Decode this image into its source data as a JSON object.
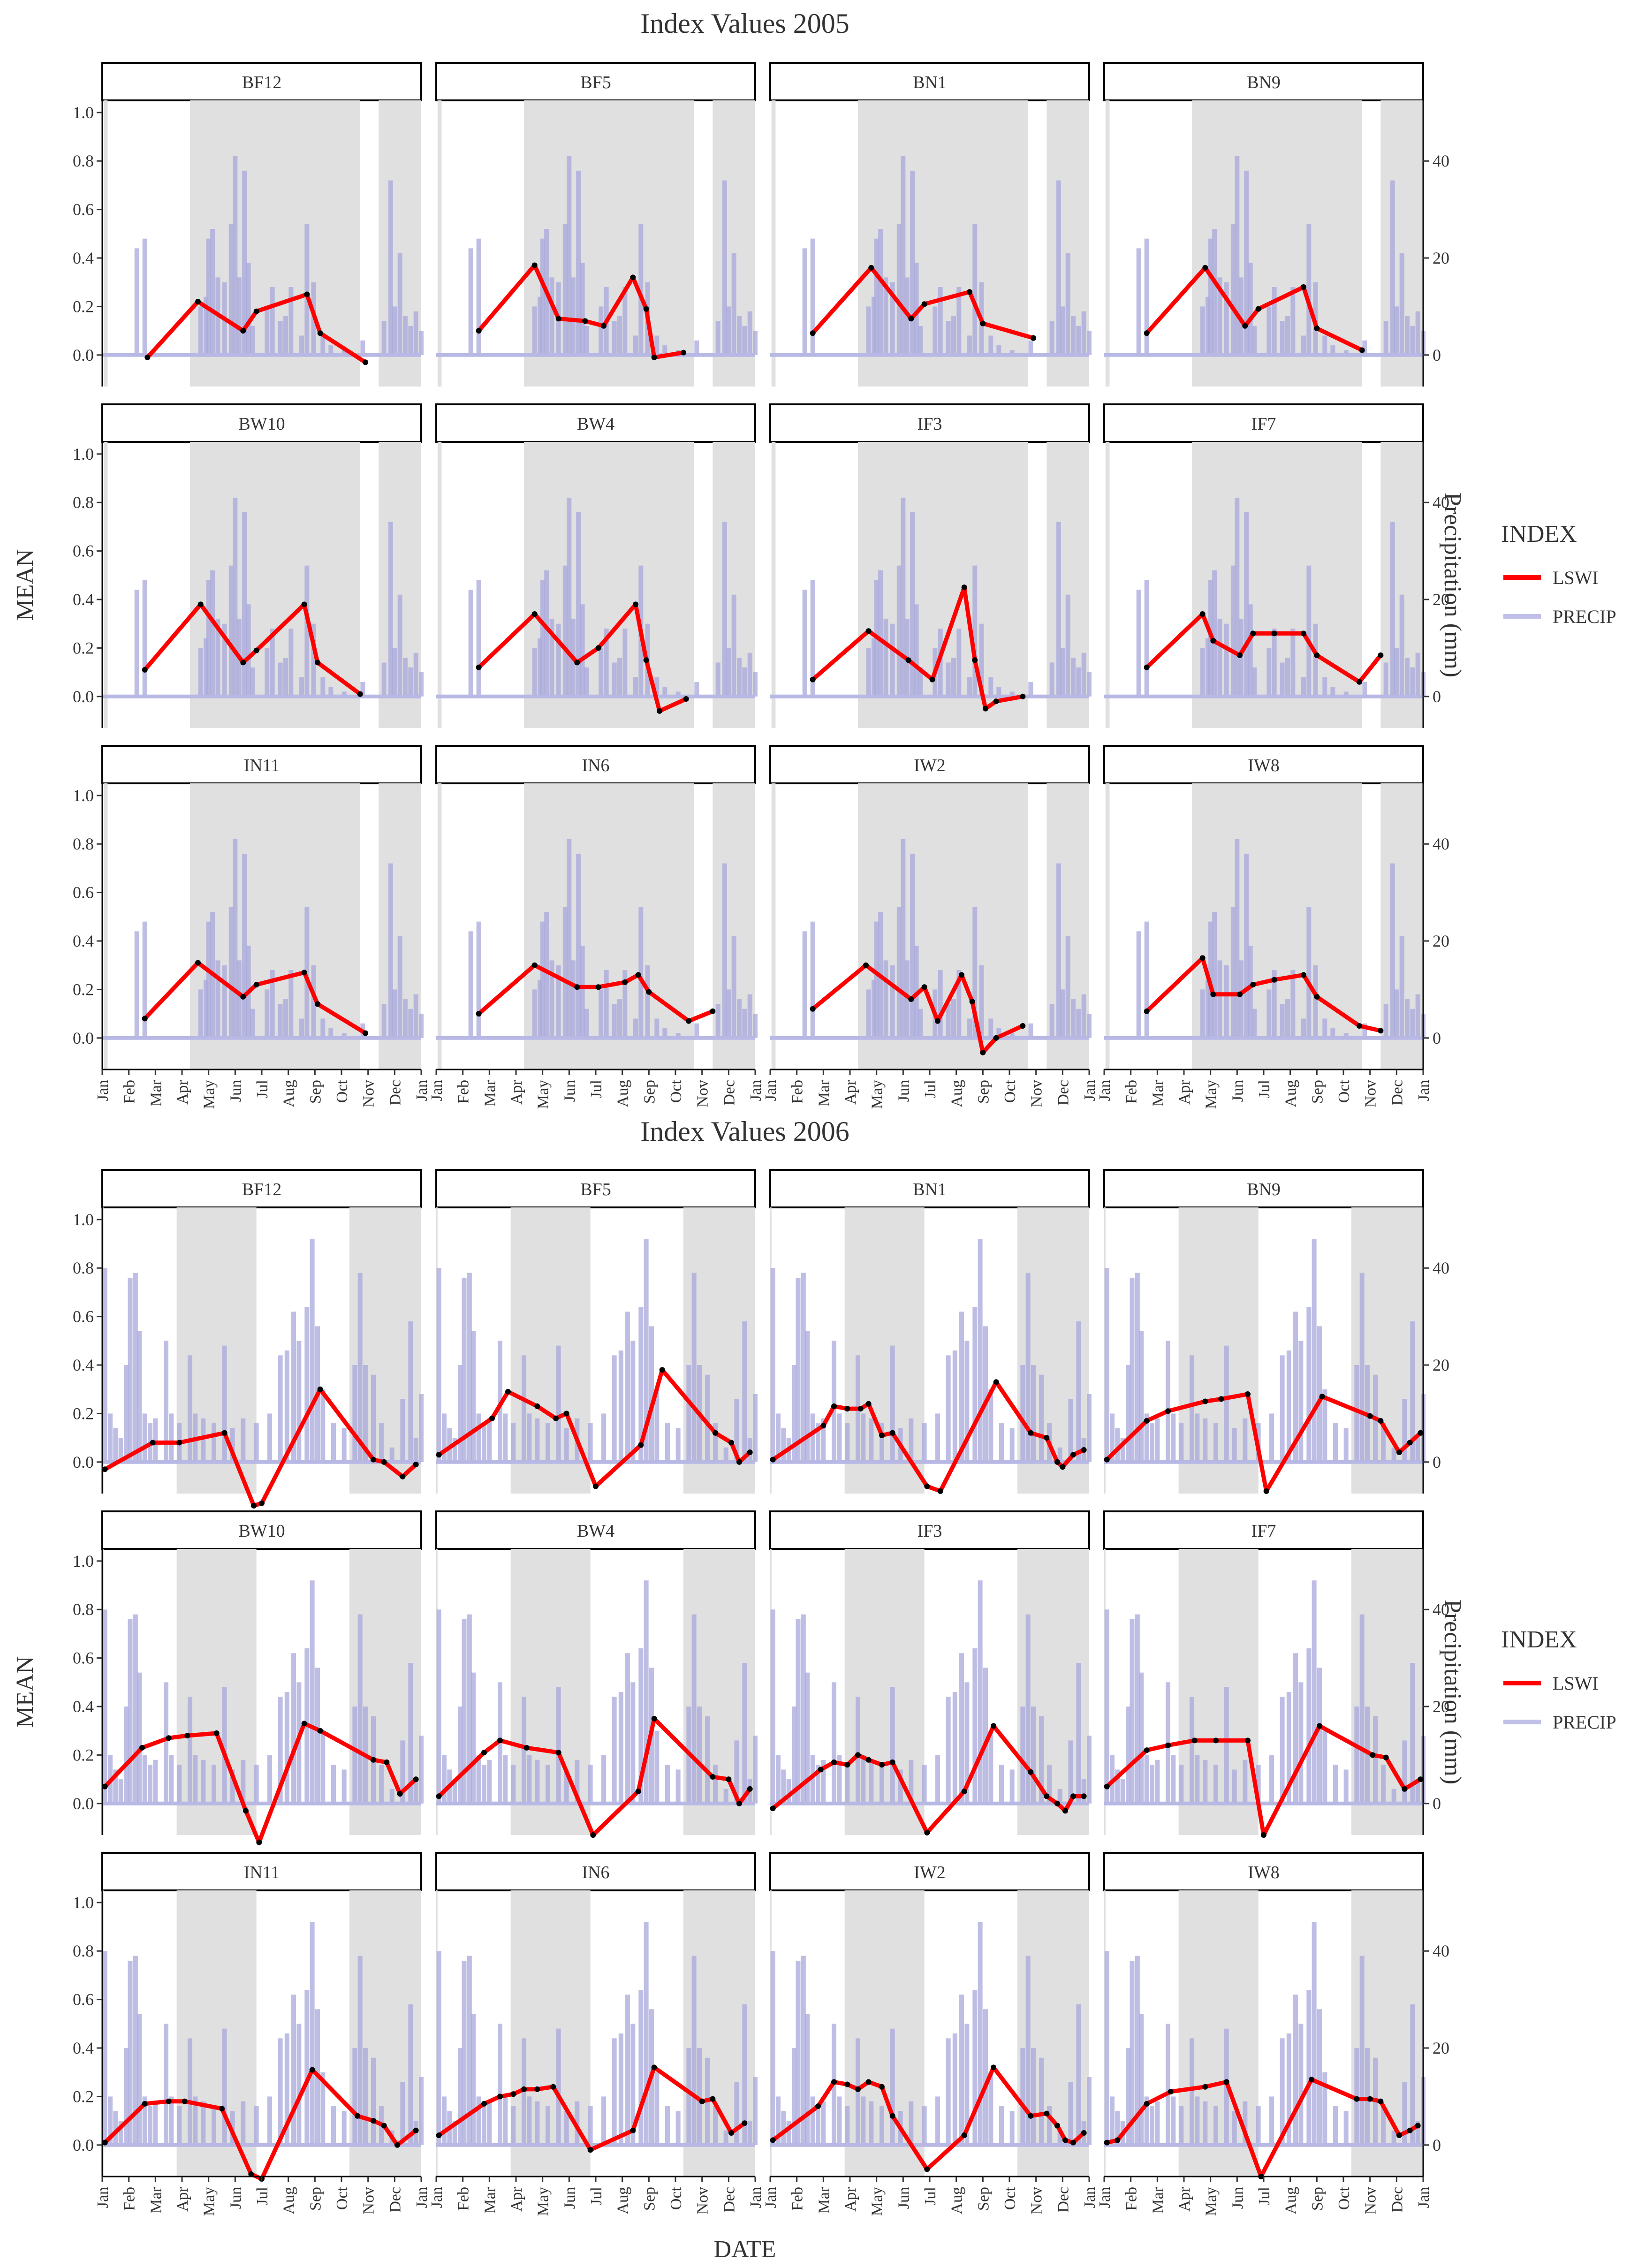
{
  "chart_data": [
    {
      "type": "line",
      "title": "Index Values 2005",
      "ylabel": "MEAN",
      "y2label": "Precipitation (mm)",
      "ylim": [
        -0.13,
        1.05
      ],
      "y_ticks": [
        0.0,
        0.2,
        0.4,
        0.6,
        0.8,
        1.0
      ],
      "y_tick_labels": [
        "0.0",
        "0.2",
        "0.4",
        "0.6",
        "0.8",
        "1.0"
      ],
      "y2_ticks": [
        0,
        20,
        40
      ],
      "y2_tick_labels": [
        "0",
        "20",
        "40"
      ],
      "y2_max_for_unit_scale": 50,
      "x_tick_labels": [
        "Jan",
        "Feb",
        "Mar",
        "Apr",
        "May",
        "Jun",
        "Jul",
        "Aug",
        "Sep",
        "Oct",
        "Nov",
        "Dec",
        "Jan"
      ],
      "shaded_periods_month": [
        [
          0.05,
          0.2
        ],
        [
          3.3,
          9.7
        ],
        [
          10.4,
          12.0
        ]
      ],
      "precip_events": [
        [
          1.3,
          22
        ],
        [
          1.6,
          24
        ],
        [
          3.7,
          10
        ],
        [
          3.9,
          12
        ],
        [
          4.0,
          24
        ],
        [
          4.15,
          26
        ],
        [
          4.35,
          16
        ],
        [
          4.6,
          15
        ],
        [
          4.85,
          27
        ],
        [
          5.0,
          41
        ],
        [
          5.15,
          16
        ],
        [
          5.35,
          38
        ],
        [
          5.5,
          19
        ],
        [
          5.65,
          6
        ],
        [
          6.2,
          10
        ],
        [
          6.4,
          14
        ],
        [
          6.7,
          7
        ],
        [
          6.9,
          8
        ],
        [
          7.1,
          14
        ],
        [
          7.5,
          4
        ],
        [
          7.7,
          27
        ],
        [
          7.95,
          15
        ],
        [
          8.3,
          4
        ],
        [
          8.6,
          2
        ],
        [
          9.1,
          1
        ],
        [
          9.8,
          3
        ],
        [
          10.6,
          7
        ],
        [
          10.85,
          36
        ],
        [
          11.0,
          10
        ],
        [
          11.2,
          21
        ],
        [
          11.4,
          8
        ],
        [
          11.6,
          6
        ],
        [
          11.8,
          9
        ],
        [
          12.0,
          5
        ]
      ],
      "legend_title": "INDEX",
      "legend": [
        "LSWI",
        "PRECIP"
      ],
      "series_colors": {
        "LSWI": "#ff0000",
        "PRECIP": "#c0c0e8"
      },
      "panels": [
        {
          "name": "BF12",
          "x": [
            1.7,
            3.6,
            5.3,
            5.8,
            7.7,
            8.2,
            9.9
          ],
          "y": [
            -0.01,
            0.22,
            0.1,
            0.18,
            0.25,
            0.09,
            -0.03
          ]
        },
        {
          "name": "BF5",
          "x": [
            1.6,
            3.7,
            4.6,
            5.6,
            6.3,
            7.4,
            7.9,
            8.2,
            9.3
          ],
          "y": [
            0.1,
            0.37,
            0.15,
            0.14,
            0.12,
            0.32,
            0.19,
            -0.01,
            0.01
          ]
        },
        {
          "name": "BN1",
          "x": [
            1.6,
            3.8,
            5.3,
            5.8,
            7.5,
            8.0,
            9.9
          ],
          "y": [
            0.09,
            0.36,
            0.15,
            0.21,
            0.26,
            0.13,
            0.07
          ]
        },
        {
          "name": "BN9",
          "x": [
            1.6,
            3.8,
            5.3,
            5.8,
            7.5,
            8.0,
            9.7
          ],
          "y": [
            0.09,
            0.36,
            0.12,
            0.19,
            0.28,
            0.11,
            0.02
          ]
        },
        {
          "name": "BW10",
          "x": [
            1.6,
            3.7,
            5.3,
            5.8,
            7.6,
            8.1,
            9.7
          ],
          "y": [
            0.11,
            0.38,
            0.14,
            0.19,
            0.38,
            0.14,
            0.01
          ]
        },
        {
          "name": "BW4",
          "x": [
            1.6,
            3.7,
            5.3,
            6.1,
            7.5,
            7.9,
            8.4,
            9.4
          ],
          "y": [
            0.12,
            0.34,
            0.14,
            0.2,
            0.38,
            0.15,
            -0.06,
            -0.01
          ]
        },
        {
          "name": "IF3",
          "x": [
            1.6,
            3.7,
            5.2,
            6.1,
            7.3,
            7.7,
            8.1,
            8.5,
            9.5
          ],
          "y": [
            0.07,
            0.27,
            0.15,
            0.07,
            0.45,
            0.15,
            -0.05,
            -0.02,
            0.0
          ]
        },
        {
          "name": "IF7",
          "x": [
            1.6,
            3.7,
            4.1,
            5.1,
            5.6,
            6.4,
            7.5,
            8.0,
            9.6,
            10.4
          ],
          "y": [
            0.12,
            0.34,
            0.23,
            0.17,
            0.26,
            0.26,
            0.26,
            0.17,
            0.06,
            0.17
          ]
        },
        {
          "name": "IN11",
          "x": [
            1.6,
            3.6,
            5.3,
            5.8,
            7.6,
            8.1,
            9.9
          ],
          "y": [
            0.08,
            0.31,
            0.17,
            0.22,
            0.27,
            0.14,
            0.02
          ]
        },
        {
          "name": "IN6",
          "x": [
            1.6,
            3.7,
            5.3,
            6.1,
            7.1,
            7.6,
            8.0,
            9.5,
            10.4
          ],
          "y": [
            0.1,
            0.3,
            0.21,
            0.21,
            0.23,
            0.26,
            0.19,
            0.07,
            0.11
          ]
        },
        {
          "name": "IW2",
          "x": [
            1.6,
            3.6,
            5.3,
            5.8,
            6.3,
            7.2,
            7.6,
            8.0,
            8.5,
            9.5
          ],
          "y": [
            0.12,
            0.3,
            0.16,
            0.21,
            0.07,
            0.26,
            0.15,
            -0.06,
            0.0,
            0.05
          ]
        },
        {
          "name": "IW8",
          "x": [
            1.6,
            3.7,
            4.1,
            5.1,
            5.6,
            6.4,
            7.5,
            8.0,
            9.6,
            10.4
          ],
          "y": [
            0.11,
            0.33,
            0.18,
            0.18,
            0.22,
            0.24,
            0.26,
            0.17,
            0.05,
            0.03
          ]
        }
      ]
    },
    {
      "type": "line",
      "title": "Index Values 2006",
      "ylabel": "MEAN",
      "y2label": "Precipitation (mm)",
      "xlabel": "DATE",
      "ylim": [
        -0.13,
        1.05
      ],
      "y_ticks": [
        0.0,
        0.2,
        0.4,
        0.6,
        0.8,
        1.0
      ],
      "y_tick_labels": [
        "0.0",
        "0.2",
        "0.4",
        "0.6",
        "0.8",
        "1.0"
      ],
      "y2_ticks": [
        0,
        20,
        40
      ],
      "y2_tick_labels": [
        "0",
        "20",
        "40"
      ],
      "y2_max_for_unit_scale": 50,
      "x_tick_labels": [
        "Jan",
        "Feb",
        "Mar",
        "Apr",
        "May",
        "Jun",
        "Jul",
        "Aug",
        "Sep",
        "Oct",
        "Nov",
        "Dec",
        "Jan"
      ],
      "shaded_periods_month": [
        [
          0.0,
          0.05
        ],
        [
          2.8,
          5.8
        ],
        [
          9.3,
          12.0
        ]
      ],
      "precip_events": [
        [
          0.1,
          40
        ],
        [
          0.3,
          10
        ],
        [
          0.5,
          7
        ],
        [
          0.7,
          5
        ],
        [
          0.9,
          20
        ],
        [
          1.05,
          38
        ],
        [
          1.25,
          39
        ],
        [
          1.4,
          27
        ],
        [
          1.6,
          10
        ],
        [
          1.8,
          8
        ],
        [
          2.0,
          9
        ],
        [
          2.4,
          25
        ],
        [
          2.6,
          10
        ],
        [
          2.9,
          8
        ],
        [
          3.3,
          22
        ],
        [
          3.5,
          10
        ],
        [
          3.8,
          9
        ],
        [
          4.2,
          8
        ],
        [
          4.6,
          24
        ],
        [
          4.9,
          7
        ],
        [
          5.3,
          9
        ],
        [
          5.8,
          8
        ],
        [
          6.3,
          10
        ],
        [
          6.7,
          22
        ],
        [
          6.95,
          23
        ],
        [
          7.2,
          31
        ],
        [
          7.4,
          25
        ],
        [
          7.7,
          32
        ],
        [
          7.9,
          46
        ],
        [
          8.1,
          28
        ],
        [
          8.3,
          15
        ],
        [
          8.7,
          8
        ],
        [
          9.1,
          7
        ],
        [
          9.5,
          20
        ],
        [
          9.7,
          39
        ],
        [
          9.9,
          20
        ],
        [
          10.2,
          18
        ],
        [
          10.5,
          8
        ],
        [
          10.9,
          3
        ],
        [
          11.3,
          13
        ],
        [
          11.6,
          29
        ],
        [
          11.8,
          5
        ],
        [
          12.0,
          14
        ]
      ],
      "legend_title": "INDEX",
      "legend": [
        "LSWI",
        "PRECIP"
      ],
      "series_colors": {
        "LSWI": "#ff0000",
        "PRECIP": "#c0c0e8"
      },
      "panels": [
        {
          "name": "BF12",
          "x": [
            0.1,
            1.9,
            2.9,
            4.6,
            5.7,
            6.0,
            8.2,
            10.2,
            10.6,
            11.3,
            11.8
          ],
          "y": [
            -0.03,
            0.08,
            0.08,
            0.12,
            -0.18,
            -0.17,
            0.3,
            0.01,
            0.0,
            -0.06,
            -0.01
          ]
        },
        {
          "name": "BF5",
          "x": [
            0.1,
            2.1,
            2.7,
            3.8,
            4.5,
            4.9,
            6.0,
            7.7,
            8.5,
            10.5,
            11.1,
            11.4,
            11.8
          ],
          "y": [
            0.03,
            0.18,
            0.29,
            0.23,
            0.18,
            0.2,
            -0.1,
            0.07,
            0.38,
            0.12,
            0.08,
            0.0,
            0.04
          ]
        },
        {
          "name": "BN1",
          "x": [
            0.1,
            2.0,
            2.4,
            2.9,
            3.4,
            3.7,
            4.2,
            4.6,
            5.9,
            6.4,
            8.5,
            9.8,
            10.4,
            10.8,
            11.0,
            11.4,
            11.8
          ],
          "y": [
            0.01,
            0.15,
            0.23,
            0.22,
            0.22,
            0.24,
            0.11,
            0.12,
            -0.1,
            -0.12,
            0.33,
            0.12,
            0.1,
            0.0,
            -0.02,
            0.03,
            0.05
          ]
        },
        {
          "name": "BN9",
          "x": [
            0.1,
            1.6,
            2.4,
            3.8,
            4.4,
            5.4,
            6.1,
            8.2,
            10.0,
            10.4,
            11.1,
            11.5,
            11.9
          ],
          "y": [
            0.01,
            0.17,
            0.21,
            0.25,
            0.26,
            0.28,
            -0.12,
            0.27,
            0.19,
            0.17,
            0.04,
            0.08,
            0.12
          ]
        },
        {
          "name": "BW10",
          "x": [
            0.1,
            1.5,
            2.5,
            3.2,
            4.3,
            5.4,
            5.9,
            7.6,
            8.2,
            10.2,
            10.7,
            11.2,
            11.8
          ],
          "y": [
            0.07,
            0.23,
            0.27,
            0.28,
            0.29,
            -0.03,
            -0.16,
            0.33,
            0.3,
            0.18,
            0.17,
            0.04,
            0.1
          ]
        },
        {
          "name": "BW4",
          "x": [
            0.1,
            1.8,
            2.4,
            3.4,
            4.6,
            5.9,
            7.6,
            8.2,
            10.4,
            11.0,
            11.4,
            11.8
          ],
          "y": [
            0.03,
            0.21,
            0.26,
            0.23,
            0.21,
            -0.13,
            0.05,
            0.35,
            0.11,
            0.1,
            0.0,
            0.06
          ]
        },
        {
          "name": "IF3",
          "x": [
            0.1,
            1.9,
            2.4,
            2.9,
            3.3,
            3.7,
            4.2,
            4.6,
            5.9,
            7.3,
            8.4,
            9.8,
            10.4,
            10.8,
            11.1,
            11.4,
            11.8
          ],
          "y": [
            -0.02,
            0.14,
            0.17,
            0.16,
            0.2,
            0.18,
            0.16,
            0.17,
            -0.12,
            0.05,
            0.32,
            0.13,
            0.03,
            0.0,
            -0.03,
            0.03,
            0.03
          ]
        },
        {
          "name": "IF7",
          "x": [
            0.1,
            1.6,
            2.4,
            3.4,
            4.2,
            5.4,
            6.0,
            8.1,
            10.1,
            10.6,
            11.3,
            11.9
          ],
          "y": [
            0.07,
            0.22,
            0.24,
            0.26,
            0.26,
            0.26,
            -0.13,
            0.32,
            0.2,
            0.19,
            0.06,
            0.1
          ]
        },
        {
          "name": "IN11",
          "x": [
            0.1,
            1.6,
            2.5,
            3.1,
            4.5,
            5.6,
            6.0,
            7.9,
            9.6,
            10.2,
            10.6,
            11.1,
            11.8
          ],
          "y": [
            0.01,
            0.17,
            0.18,
            0.18,
            0.15,
            -0.12,
            -0.14,
            0.31,
            0.12,
            0.1,
            0.08,
            0.0,
            0.06
          ]
        },
        {
          "name": "IN6",
          "x": [
            0.1,
            1.8,
            2.4,
            2.9,
            3.3,
            3.8,
            4.4,
            5.8,
            7.4,
            8.2,
            10.0,
            10.4,
            11.1,
            11.6
          ],
          "y": [
            0.04,
            0.17,
            0.2,
            0.21,
            0.23,
            0.23,
            0.24,
            -0.02,
            0.06,
            0.32,
            0.18,
            0.19,
            0.05,
            0.09
          ]
        },
        {
          "name": "IW2",
          "x": [
            0.1,
            1.8,
            2.4,
            2.9,
            3.3,
            3.7,
            4.2,
            4.6,
            5.9,
            7.3,
            8.4,
            9.8,
            10.4,
            10.8,
            11.1,
            11.4,
            11.8
          ],
          "y": [
            0.02,
            0.16,
            0.26,
            0.25,
            0.23,
            0.26,
            0.24,
            0.12,
            -0.1,
            0.04,
            0.32,
            0.12,
            0.13,
            0.08,
            0.02,
            0.01,
            0.05
          ]
        },
        {
          "name": "IW8",
          "x": [
            0.1,
            0.5,
            1.6,
            2.5,
            3.8,
            4.6,
            5.9,
            7.8,
            9.5,
            10.0,
            10.4,
            11.1,
            11.5,
            11.8
          ],
          "y": [
            0.01,
            0.02,
            0.17,
            0.22,
            0.24,
            0.26,
            -0.13,
            0.27,
            0.19,
            0.19,
            0.18,
            0.04,
            0.06,
            0.08
          ]
        }
      ]
    }
  ]
}
